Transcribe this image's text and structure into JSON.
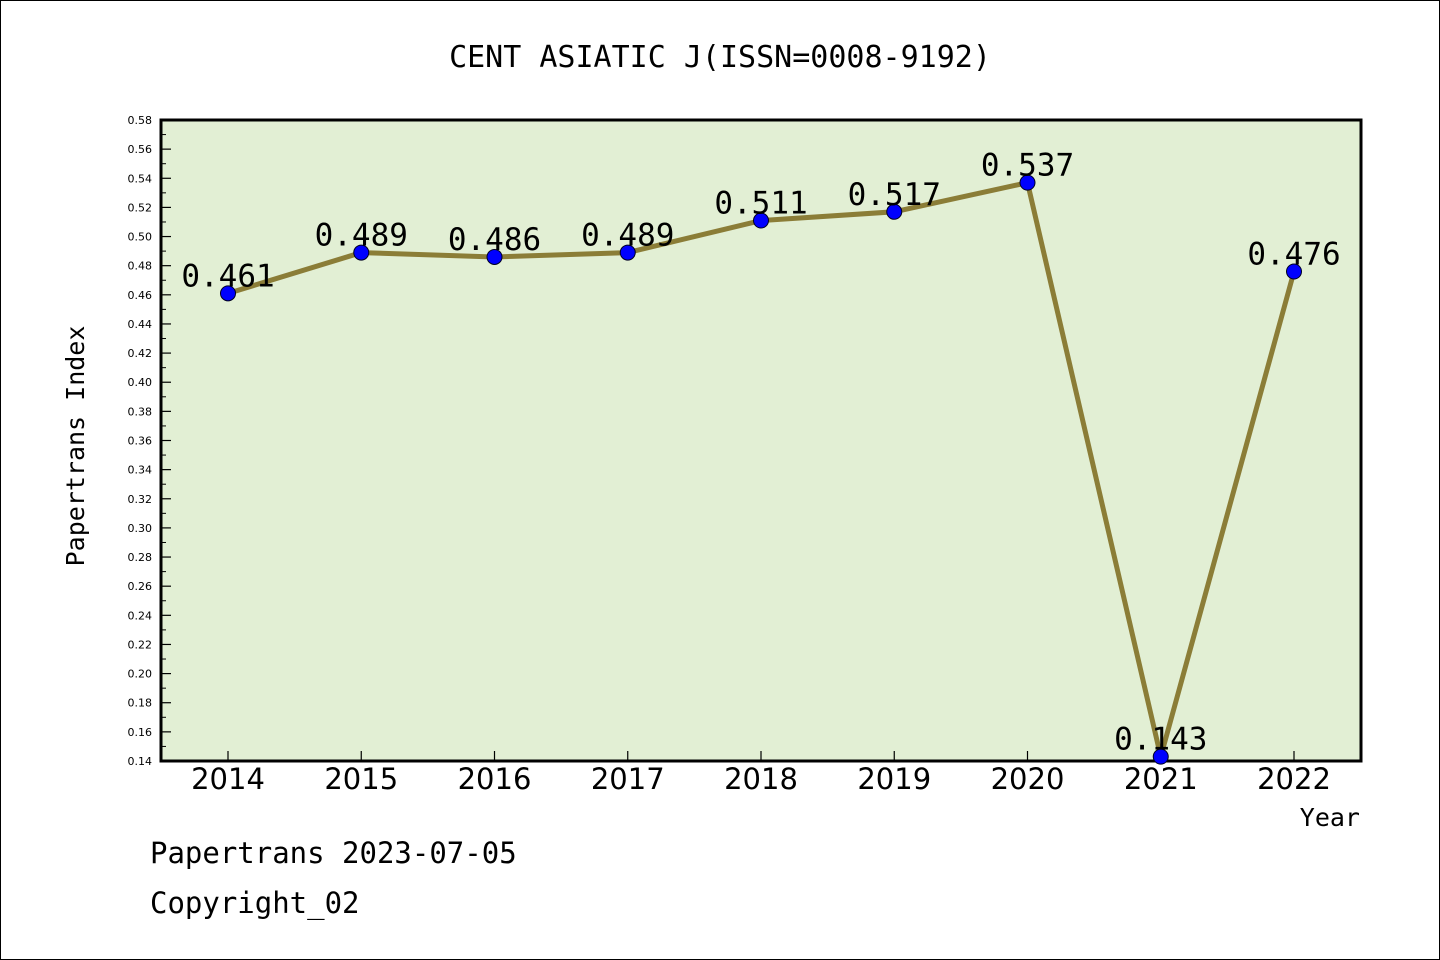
{
  "chart_data": {
    "type": "line",
    "title": "CENT ASIATIC J(ISSN=0008-9192)",
    "xlabel": "Year",
    "ylabel": "Papertrans Index",
    "categories": [
      "2014",
      "2015",
      "2016",
      "2017",
      "2018",
      "2019",
      "2020",
      "2021",
      "2022"
    ],
    "series": [
      {
        "values": [
          0.461,
          0.489,
          0.486,
          0.489,
          0.511,
          0.517,
          0.537,
          0.143,
          0.476
        ],
        "labels": [
          "0.461",
          "0.489",
          "0.486",
          "0.489",
          "0.511",
          "0.517",
          "0.537",
          "0.143",
          "0.476"
        ]
      }
    ],
    "ylim": [
      0.14,
      0.58
    ],
    "yticks": [
      "0.14",
      "0.16",
      "0.18",
      "0.20",
      "0.22",
      "0.24",
      "0.26",
      "0.28",
      "0.30",
      "0.32",
      "0.34",
      "0.36",
      "0.38",
      "0.40",
      "0.42",
      "0.44",
      "0.46",
      "0.48",
      "0.50",
      "0.52",
      "0.54",
      "0.56",
      "0.58"
    ],
    "grid": false,
    "legend": "none",
    "colors": {
      "plot_background": "#e2efd4",
      "line": "#8b7d37",
      "marker": "#0000ff"
    }
  },
  "footer": {
    "line1": "Papertrans 2023-07-05",
    "line2": "Copyright_02"
  }
}
